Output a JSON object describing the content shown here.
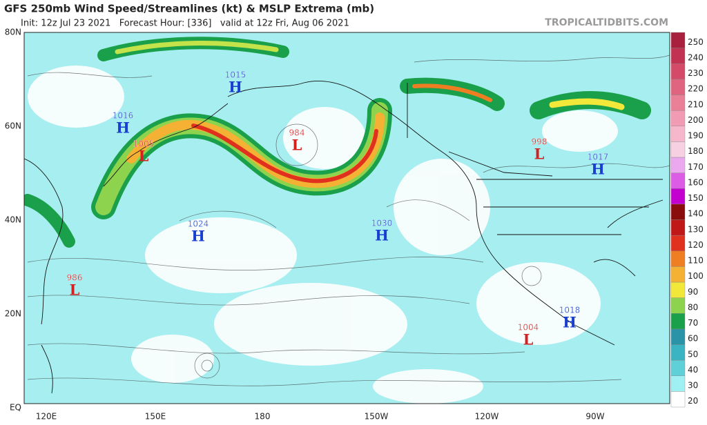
{
  "header": {
    "title": "GFS 250mb Wind Speed/Streamlines (kt) & MSLP Extrema (mb)",
    "subtitle": "Init: 12z Jul 23 2021   Forecast Hour: [336]   valid at 12z Fri, Aug 06 2021",
    "site": "TROPICALTIDBITS.COM"
  },
  "map": {
    "lat_labels": [
      "80N",
      "60N",
      "40N",
      "20N",
      "EQ"
    ],
    "lon_labels": [
      "120E",
      "150E",
      "180",
      "150W",
      "120W",
      "90W"
    ],
    "centers": [
      {
        "kind": "H",
        "pressure": 1015
      },
      {
        "kind": "H",
        "pressure": 1016
      },
      {
        "kind": "L",
        "pressure": 1005
      },
      {
        "kind": "L",
        "pressure": 984
      },
      {
        "kind": "H",
        "pressure": 1024
      },
      {
        "kind": "H",
        "pressure": 1030
      },
      {
        "kind": "L",
        "pressure": 986
      },
      {
        "kind": "L",
        "pressure": 998
      },
      {
        "kind": "H",
        "pressure": 1017
      },
      {
        "kind": "H",
        "pressure": 1018
      },
      {
        "kind": "L",
        "pressure": 1004
      }
    ]
  },
  "colorbar": {
    "levels": [
      20,
      30,
      40,
      50,
      60,
      70,
      80,
      90,
      100,
      110,
      120,
      130,
      140,
      150,
      160,
      170,
      180,
      190,
      200,
      210,
      220,
      230,
      240,
      250
    ],
    "colors": [
      "#ffffff",
      "#9ff0f2",
      "#5fcfd8",
      "#3ab3c2",
      "#2a93a8",
      "#1aa04a",
      "#8ed34e",
      "#f2e83a",
      "#f5b134",
      "#ef7d22",
      "#e0311e",
      "#c01818",
      "#8a0c0c",
      "#c300d0",
      "#dc5ce6",
      "#eba8ef",
      "#f7d1e2",
      "#f6b7cc",
      "#f19bb4",
      "#ea7f98",
      "#e0647f",
      "#d44a68",
      "#c23353",
      "#a8203e"
    ]
  }
}
